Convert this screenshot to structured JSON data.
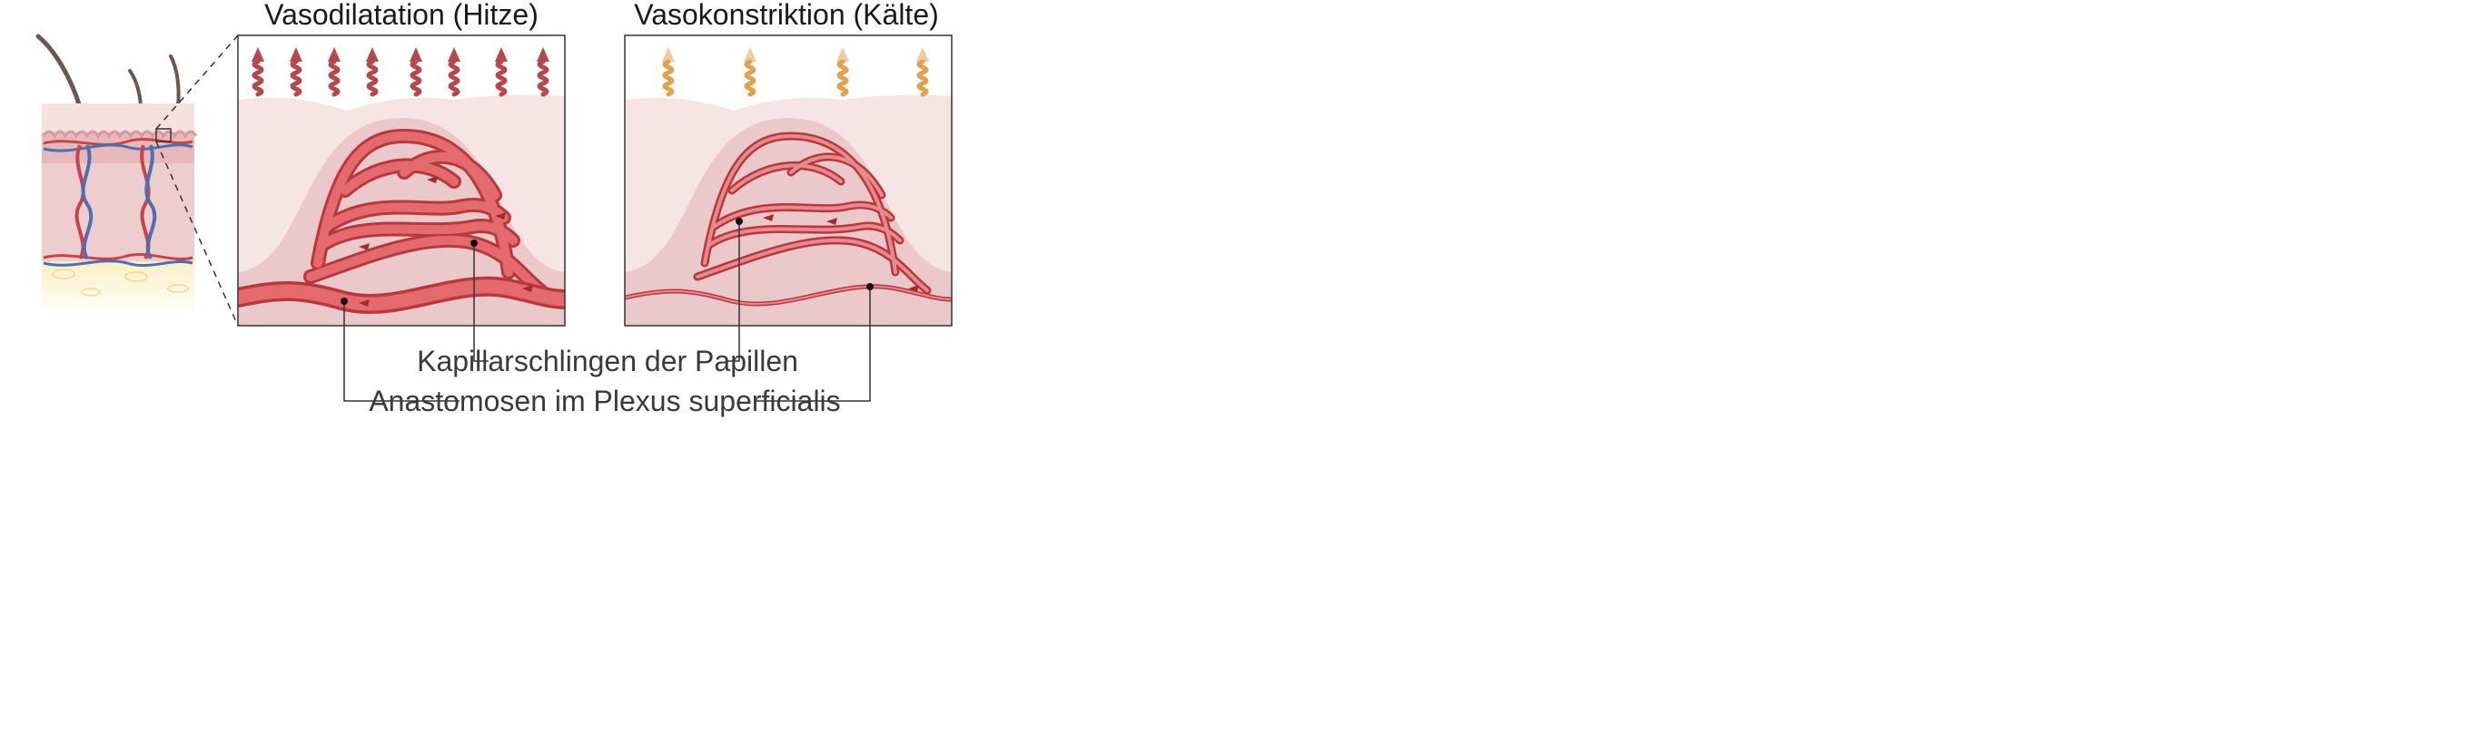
{
  "titles": {
    "left": "Vasodilatation (Hitze)",
    "right": "Vasokonstriktion (Kälte)"
  },
  "labels": {
    "capillary_loops": "Kapillarschlingen der Papillen",
    "anastomoses": "Anastomosen im Plexus superficialis"
  },
  "colors": {
    "artery": "#d9575a",
    "artery_dark": "#b8383d",
    "vein": "#4a6fb5",
    "heat_wave": "#b5474d",
    "cold_wave": "#e0a24e",
    "epidermis": "#f7e4e4",
    "dermis": "#ebc9ca",
    "papilla": "#e3b7b8",
    "fat": "#fbefc4",
    "leader": "#333333"
  }
}
